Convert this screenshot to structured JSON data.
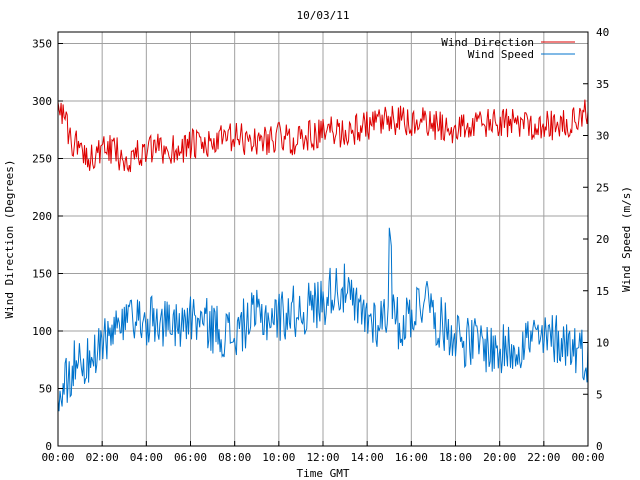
{
  "chart_data": {
    "type": "line",
    "title": "10/03/11",
    "xlabel": "Time GMT",
    "ylabel_left": "Wind Direction (Degrees)",
    "ylabel_right": "Wind Speed (m/s)",
    "x_ticks": [
      "00:00",
      "02:00",
      "04:00",
      "06:00",
      "08:00",
      "10:00",
      "12:00",
      "14:00",
      "16:00",
      "18:00",
      "20:00",
      "22:00",
      "00:00"
    ],
    "y_left_ticks": [
      "0",
      "50",
      "100",
      "150",
      "200",
      "250",
      "300",
      "350"
    ],
    "y_right_ticks": [
      "0",
      "5",
      "10",
      "15",
      "20",
      "25",
      "30",
      "35",
      "40"
    ],
    "y_left_range": [
      0,
      360
    ],
    "y_right_range": [
      0,
      40
    ],
    "x_range_hours": [
      0,
      24
    ],
    "grid": true,
    "legend_position": "top-right",
    "series": [
      {
        "name": "Wind Direction",
        "axis": "left",
        "color": "#dd0000",
        "x_hours": [
          0,
          0.5,
          1,
          1.5,
          2,
          2.5,
          3,
          3.5,
          4,
          4.5,
          5,
          5.5,
          6,
          6.5,
          7,
          7.5,
          8,
          8.5,
          9,
          9.5,
          10,
          10.5,
          11,
          11.5,
          12,
          12.5,
          13,
          13.5,
          14,
          14.5,
          15,
          15.5,
          16,
          16.5,
          17,
          17.5,
          18,
          18.5,
          19,
          19.5,
          20,
          20.5,
          21,
          21.5,
          22,
          22.5,
          23,
          23.5,
          24
        ],
        "values": [
          305,
          268,
          258,
          252,
          255,
          258,
          250,
          253,
          255,
          258,
          257,
          259,
          262,
          260,
          263,
          266,
          268,
          266,
          265,
          267,
          269,
          265,
          268,
          270,
          272,
          274,
          272,
          276,
          278,
          280,
          282,
          283,
          280,
          281,
          279,
          277,
          276,
          278,
          279,
          280,
          281,
          279,
          282,
          280,
          279,
          278,
          280,
          281,
          295
        ]
      },
      {
        "name": "Wind Speed",
        "axis": "right",
        "color": "#0073cc",
        "x_hours": [
          0,
          0.5,
          1,
          1.5,
          2,
          2.5,
          3,
          3.5,
          4,
          4.5,
          5,
          5.5,
          6,
          6.5,
          7,
          7.5,
          8,
          8.5,
          9,
          9.5,
          10,
          10.5,
          11,
          11.5,
          12,
          12.5,
          13,
          13.5,
          14,
          14.5,
          15,
          15.5,
          16,
          16.5,
          17,
          17.5,
          18,
          18.5,
          19,
          19.5,
          20,
          20.5,
          21,
          21.5,
          22,
          22.5,
          23,
          23.5,
          24
        ],
        "values": [
          4.5,
          7,
          8.5,
          8,
          9.5,
          11,
          11.5,
          11.5,
          12,
          12,
          11.8,
          12,
          12.5,
          12,
          11.5,
          11,
          10.5,
          12,
          12.5,
          12.5,
          12.5,
          13,
          13,
          13.5,
          14,
          15.5,
          15,
          13,
          12.5,
          12,
          13,
          11.5,
          13,
          14,
          12.5,
          11.5,
          11,
          10,
          10,
          9.5,
          9,
          9.5,
          10,
          10.5,
          10,
          10.5,
          10,
          9.5,
          8.5
        ]
      }
    ]
  }
}
